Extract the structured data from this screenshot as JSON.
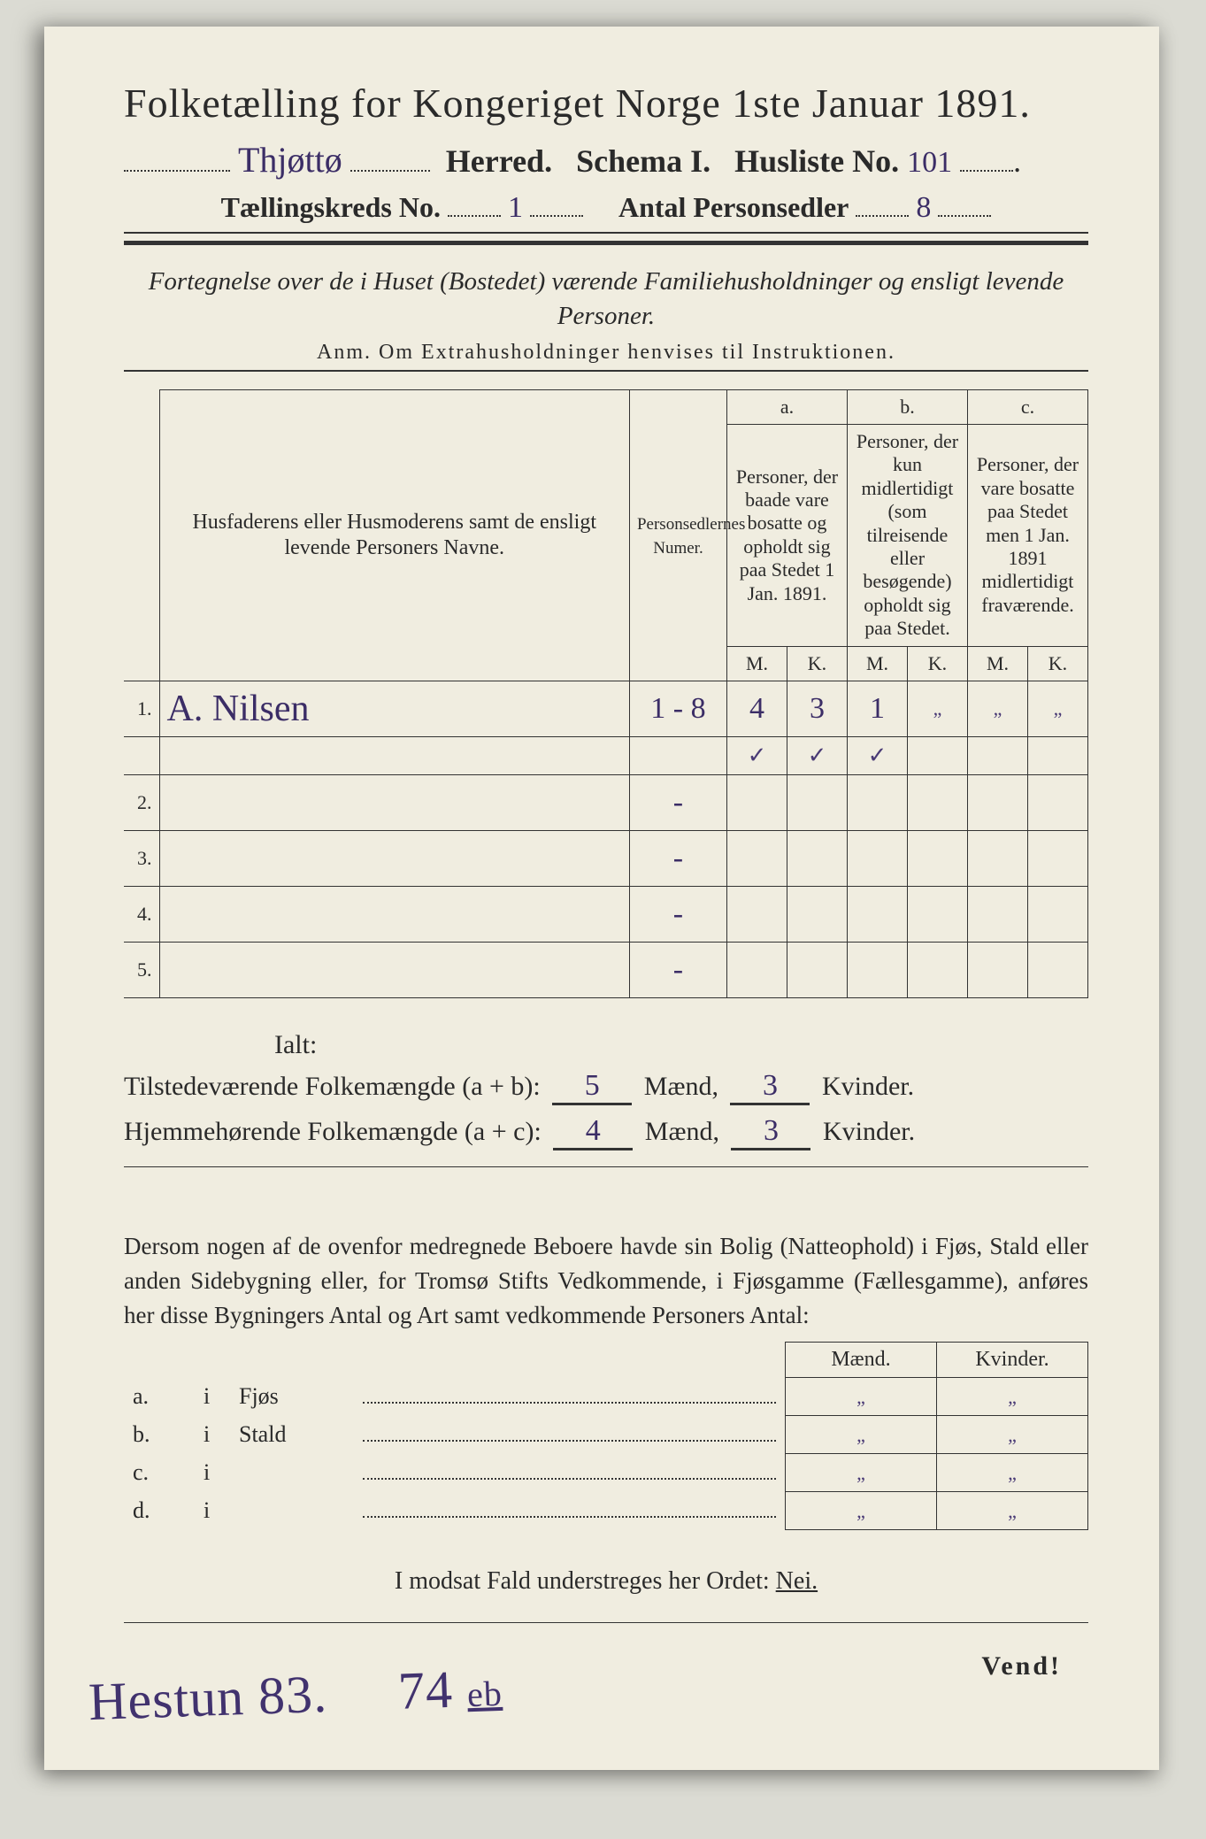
{
  "header": {
    "title": "Folketælling for Kongeriget Norge 1ste Januar 1891.",
    "herred_label": "Herred.",
    "herred_value": "Thjøttø",
    "schema": "Schema I.",
    "husliste_label": "Husliste No.",
    "husliste_value": "101",
    "kreds_label": "Tællingskreds No.",
    "kreds_value": "1",
    "sedler_label": "Antal Personsedler",
    "sedler_value": "8"
  },
  "fortegnelse": "Fortegnelse over de i Huset (Bostedet) værende Familiehusholdninger og ensligt levende Personer.",
  "anm": "Anm.  Om Extrahusholdninger henvises til Instruktionen.",
  "columns": {
    "num": "",
    "name": "Husfaderens eller Husmoderens samt de ensligt levende Personers Navne.",
    "ps": "Personsedlernes Numer.",
    "a_label": "a.",
    "a_desc": "Personer, der baade vare bosatte og opholdt sig paa Stedet 1 Jan. 1891.",
    "b_label": "b.",
    "b_desc": "Personer, der kun midlertidigt (som tilreisende eller besøgende) opholdt sig paa Stedet.",
    "c_label": "c.",
    "c_desc": "Personer, der vare bosatte paa Stedet men 1 Jan. 1891 midlertidigt fraværende.",
    "M": "M.",
    "K": "K."
  },
  "rows": [
    {
      "n": "1.",
      "name": "A. Nilsen",
      "ps": "1 - 8",
      "aM": "4",
      "aK": "3",
      "bM": "1",
      "bK": "„",
      "cM": "„",
      "cK": "„"
    },
    {
      "n": "2.",
      "name": "",
      "ps": "-",
      "aM": "",
      "aK": "",
      "bM": "",
      "bK": "",
      "cM": "",
      "cK": ""
    },
    {
      "n": "3.",
      "name": "",
      "ps": "-",
      "aM": "",
      "aK": "",
      "bM": "",
      "bK": "",
      "cM": "",
      "cK": ""
    },
    {
      "n": "4.",
      "name": "",
      "ps": "-",
      "aM": "",
      "aK": "",
      "bM": "",
      "bK": "",
      "cM": "",
      "cK": ""
    },
    {
      "n": "5.",
      "name": "",
      "ps": "-",
      "aM": "",
      "aK": "",
      "bM": "",
      "bK": "",
      "cM": "",
      "cK": ""
    }
  ],
  "checkmarks": {
    "aM": "✓",
    "aK": "✓",
    "bM": "✓"
  },
  "totals": {
    "ialt": "Ialt:",
    "l1_label": "Tilstedeværende Folkemængde (a + b):",
    "l1_m": "5",
    "maend": "Mænd,",
    "l1_k": "3",
    "kvinder": "Kvinder.",
    "l2_label": "Hjemmehørende Folkemængde (a + c):",
    "l2_m": "4",
    "l2_k": "3"
  },
  "para": "Dersom nogen af de ovenfor medregnede Beboere havde sin Bolig (Natteophold) i Fjøs, Stald eller anden Sidebygning eller, for Tromsø Stifts Vedkommende, i Fjøsgamme (Fællesgamme), anføres her disse Bygningers Antal og Art samt vedkommende Personers Antal:",
  "small": {
    "maend": "Mænd.",
    "kvinder": "Kvinder.",
    "rows": [
      {
        "k": "a.",
        "i": "i",
        "label": "Fjøs",
        "m": "„",
        "kv": "„"
      },
      {
        "k": "b.",
        "i": "i",
        "label": "Stald",
        "m": "„",
        "kv": "„"
      },
      {
        "k": "c.",
        "i": "i",
        "label": "",
        "m": "„",
        "kv": "„"
      },
      {
        "k": "d.",
        "i": "i",
        "label": "",
        "m": "„",
        "kv": "„"
      }
    ]
  },
  "nei_line": "I modsat Fald understreges her Ordet:",
  "nei": "Nei.",
  "vend": "Vend!",
  "bottom": {
    "a": "Hestun 83.",
    "b": "74",
    "c": "eb"
  },
  "style": {
    "paper_bg": "#f0ede0",
    "outer_bg": "#dbdbd3",
    "ink": "#2a2a2a",
    "hand_ink": "#3b2d66",
    "title_fontsize": 46,
    "row_fontsize": 22
  }
}
